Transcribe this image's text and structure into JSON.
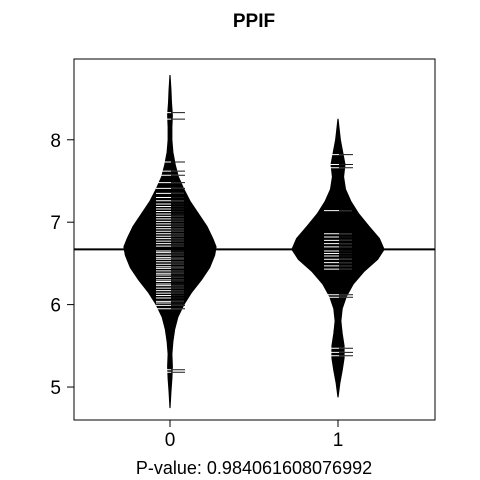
{
  "chart_data": {
    "type": "beanplot",
    "title": "PPIF",
    "xlabel": "P-value: 0.984061608076992",
    "ylabel": "",
    "categories": [
      "0",
      "1"
    ],
    "yticks": [
      5,
      6,
      7,
      8
    ],
    "ylim": [
      4.6,
      8.98
    ],
    "overall_line": 6.67,
    "beans": [
      {
        "category": "0",
        "range": [
          4.75,
          8.78
        ],
        "density": [
          [
            4.75,
            0.0
          ],
          [
            4.95,
            0.02
          ],
          [
            5.1,
            0.04
          ],
          [
            5.25,
            0.05
          ],
          [
            5.4,
            0.04
          ],
          [
            5.55,
            0.06
          ],
          [
            5.7,
            0.1
          ],
          [
            5.85,
            0.17
          ],
          [
            6.0,
            0.3
          ],
          [
            6.15,
            0.47
          ],
          [
            6.3,
            0.68
          ],
          [
            6.45,
            0.86
          ],
          [
            6.6,
            0.97
          ],
          [
            6.7,
            1.0
          ],
          [
            6.8,
            0.93
          ],
          [
            6.95,
            0.8
          ],
          [
            7.1,
            0.62
          ],
          [
            7.25,
            0.44
          ],
          [
            7.4,
            0.3
          ],
          [
            7.55,
            0.18
          ],
          [
            7.7,
            0.11
          ],
          [
            7.85,
            0.06
          ],
          [
            8.0,
            0.04
          ],
          [
            8.15,
            0.04
          ],
          [
            8.3,
            0.05
          ],
          [
            8.45,
            0.03
          ],
          [
            8.6,
            0.02
          ],
          [
            8.78,
            0.0
          ]
        ],
        "observations": [
          5.18,
          5.21,
          5.95,
          5.99,
          6.02,
          6.04,
          6.08,
          6.11,
          6.14,
          6.17,
          6.2,
          6.23,
          6.25,
          6.28,
          6.3,
          6.33,
          6.36,
          6.38,
          6.41,
          6.44,
          6.46,
          6.49,
          6.52,
          6.55,
          6.57,
          6.6,
          6.63,
          6.65,
          6.71,
          6.74,
          6.77,
          6.8,
          6.83,
          6.86,
          6.89,
          6.92,
          6.95,
          6.98,
          7.01,
          7.04,
          7.07,
          7.1,
          7.13,
          7.16,
          7.19,
          7.22,
          7.26,
          7.3,
          7.35,
          7.41,
          7.48,
          7.57,
          7.62,
          7.73,
          8.25,
          8.33
        ]
      },
      {
        "category": "1",
        "range": [
          4.88,
          8.25
        ],
        "density": [
          [
            4.88,
            0.0
          ],
          [
            5.05,
            0.04
          ],
          [
            5.2,
            0.09
          ],
          [
            5.35,
            0.13
          ],
          [
            5.5,
            0.13
          ],
          [
            5.65,
            0.09
          ],
          [
            5.8,
            0.06
          ],
          [
            5.95,
            0.09
          ],
          [
            6.1,
            0.18
          ],
          [
            6.25,
            0.33
          ],
          [
            6.4,
            0.56
          ],
          [
            6.55,
            0.86
          ],
          [
            6.67,
            1.0
          ],
          [
            6.8,
            0.9
          ],
          [
            6.95,
            0.67
          ],
          [
            7.1,
            0.45
          ],
          [
            7.25,
            0.28
          ],
          [
            7.4,
            0.16
          ],
          [
            7.55,
            0.12
          ],
          [
            7.7,
            0.15
          ],
          [
            7.85,
            0.1
          ],
          [
            8.0,
            0.05
          ],
          [
            8.15,
            0.02
          ],
          [
            8.25,
            0.0
          ]
        ],
        "observations": [
          5.38,
          5.42,
          5.47,
          6.09,
          6.12,
          6.43,
          6.47,
          6.51,
          6.55,
          6.59,
          6.62,
          6.65,
          6.7,
          6.74,
          6.78,
          6.82,
          6.86,
          7.14,
          7.66,
          7.7,
          7.82
        ]
      }
    ]
  }
}
